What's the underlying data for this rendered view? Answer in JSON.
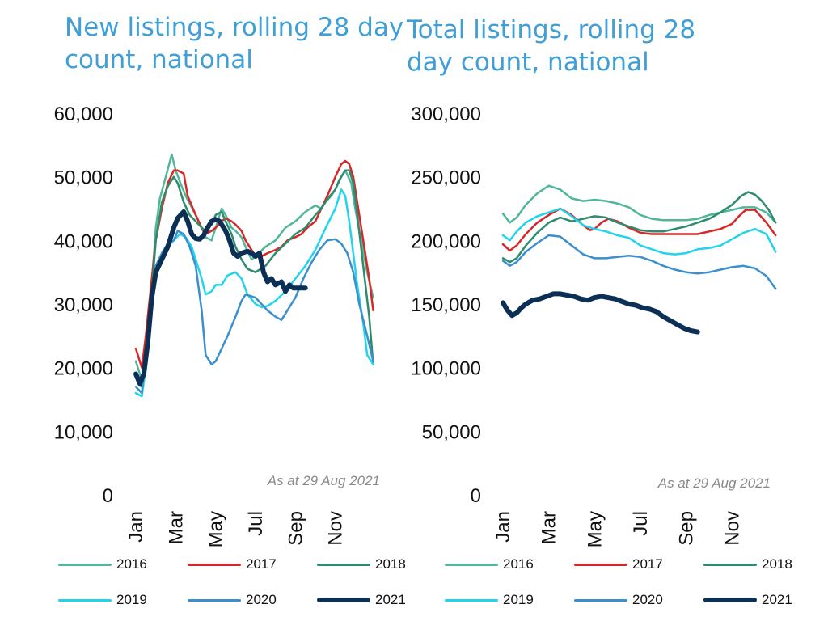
{
  "chart_data": [
    {
      "type": "line",
      "title": "New listings, rolling 28 day count, national",
      "annotation": "As at 29 Aug 2021",
      "ylim": [
        0,
        60000
      ],
      "yticks": [
        0,
        10000,
        20000,
        30000,
        40000,
        50000,
        60000
      ],
      "ytick_labels": [
        "0",
        "10,000",
        "20,000",
        "30,000",
        "40,000",
        "50,000",
        "60,000"
      ],
      "xlim": [
        0,
        12
      ],
      "xticks": [
        0,
        2,
        4,
        6,
        8,
        10
      ],
      "xtick_labels": [
        "Jan",
        "Mar",
        "May",
        "Jul",
        "Sep",
        "Nov"
      ],
      "grid": false,
      "legend_position": "bottom",
      "series": [
        {
          "name": "2016",
          "color": "#52b69a",
          "width": 2.5,
          "x": [
            0,
            0.3,
            0.5,
            0.8,
            1.0,
            1.2,
            1.5,
            1.8,
            2.0,
            2.3,
            2.5,
            3.0,
            3.3,
            3.5,
            3.8,
            4.0,
            4.3,
            4.5,
            4.8,
            5.0,
            5.3,
            5.5,
            5.8,
            6.0,
            6.5,
            7.0,
            7.5,
            8.0,
            8.5,
            9.0,
            9.3,
            9.5,
            9.8,
            10.0,
            10.3,
            10.5,
            10.8,
            11.0,
            11.3,
            11.6,
            11.9
          ],
          "y": [
            21000,
            18000,
            24000,
            33000,
            42000,
            46500,
            50000,
            53500,
            51000,
            48500,
            47000,
            44000,
            42000,
            40500,
            40000,
            42000,
            45000,
            44000,
            42000,
            41500,
            40500,
            39000,
            37000,
            37500,
            39000,
            40000,
            42000,
            43000,
            44500,
            45500,
            45000,
            46000,
            47000,
            48000,
            50000,
            51000,
            49000,
            45000,
            40000,
            35000,
            31000
          ]
        },
        {
          "name": "2017",
          "color": "#d62828",
          "width": 2.5,
          "x": [
            0,
            0.3,
            0.5,
            0.8,
            1.0,
            1.3,
            1.6,
            1.9,
            2.1,
            2.4,
            2.6,
            3.0,
            3.3,
            3.5,
            3.8,
            4.0,
            4.3,
            4.5,
            4.8,
            5.0,
            5.3,
            5.5,
            5.8,
            6.0,
            6.3,
            6.6,
            7.0,
            7.3,
            7.6,
            8.0,
            8.3,
            8.6,
            9.0,
            9.3,
            9.6,
            10.0,
            10.3,
            10.5,
            10.7,
            10.9,
            11.1,
            11.4,
            11.7,
            11.9
          ],
          "y": [
            23000,
            20000,
            25000,
            34000,
            40000,
            45000,
            49000,
            51000,
            51000,
            50500,
            47000,
            44000,
            42000,
            41000,
            41500,
            42000,
            43000,
            43500,
            43000,
            42500,
            41500,
            40000,
            38500,
            37500,
            37500,
            38000,
            38500,
            39000,
            40000,
            40500,
            41000,
            42000,
            43000,
            45000,
            47000,
            50000,
            52000,
            52500,
            52000,
            50000,
            46000,
            40000,
            34000,
            29000
          ]
        },
        {
          "name": "2018",
          "color": "#2e8b6e",
          "width": 2.5,
          "x": [
            0,
            0.3,
            0.5,
            0.8,
            1.0,
            1.3,
            1.6,
            1.9,
            2.1,
            2.4,
            2.7,
            3.0,
            3.3,
            3.5,
            3.8,
            4.0,
            4.3,
            4.5,
            4.8,
            5.0,
            5.3,
            5.6,
            6.0,
            6.5,
            7.0,
            7.5,
            8.0,
            8.5,
            9.0,
            9.3,
            9.6,
            10.0,
            10.2,
            10.5,
            10.7,
            10.9,
            11.1,
            11.4,
            11.7,
            11.9
          ],
          "y": [
            19000,
            17000,
            22000,
            32000,
            40000,
            46000,
            48500,
            50000,
            49000,
            46000,
            44000,
            43000,
            42000,
            41500,
            42500,
            44000,
            44500,
            43000,
            41000,
            39000,
            37000,
            35500,
            35000,
            36000,
            38000,
            39500,
            41000,
            42000,
            44000,
            45000,
            46500,
            48000,
            49500,
            51000,
            51000,
            49000,
            44000,
            36000,
            28000,
            20500
          ]
        },
        {
          "name": "2019",
          "color": "#22d3ee",
          "width": 2.5,
          "x": [
            0,
            0.3,
            0.5,
            0.8,
            1.0,
            1.3,
            1.6,
            1.9,
            2.2,
            2.5,
            2.8,
            3.0,
            3.3,
            3.5,
            3.8,
            4.0,
            4.3,
            4.6,
            5.0,
            5.3,
            5.6,
            6.0,
            6.3,
            6.6,
            7.0,
            7.5,
            8.0,
            8.5,
            9.0,
            9.3,
            9.6,
            10.0,
            10.3,
            10.5,
            10.7,
            10.9,
            11.1,
            11.4,
            11.6,
            11.9
          ],
          "y": [
            16000,
            15500,
            20000,
            29000,
            35000,
            37500,
            39000,
            40000,
            41000,
            40500,
            39000,
            37000,
            34000,
            31500,
            32000,
            33000,
            33000,
            34500,
            35000,
            34000,
            31500,
            30000,
            29500,
            29700,
            30500,
            32000,
            34000,
            36000,
            38500,
            40500,
            42500,
            45000,
            48000,
            47000,
            43000,
            38000,
            33000,
            27000,
            22000,
            20500
          ]
        },
        {
          "name": "2020",
          "color": "#3b8fcc",
          "width": 2.5,
          "x": [
            0,
            0.3,
            0.5,
            0.8,
            1.0,
            1.3,
            1.6,
            1.9,
            2.1,
            2.4,
            2.7,
            3.0,
            3.3,
            3.5,
            3.8,
            4.0,
            4.3,
            4.6,
            5.0,
            5.3,
            5.5,
            5.8,
            6.0,
            6.3,
            6.6,
            7.0,
            7.3,
            7.6,
            8.0,
            8.4,
            8.8,
            9.2,
            9.6,
            10.0,
            10.3,
            10.6,
            10.9,
            11.2,
            11.6,
            11.9
          ],
          "y": [
            17000,
            16000,
            22000,
            31000,
            36000,
            38000,
            39500,
            40000,
            41500,
            41000,
            39000,
            36000,
            29000,
            22000,
            20500,
            21000,
            23000,
            25000,
            28000,
            30500,
            31500,
            31200,
            31000,
            30000,
            29000,
            28000,
            27500,
            29000,
            31000,
            34000,
            36500,
            38500,
            40000,
            40200,
            39500,
            38000,
            35000,
            30000,
            25000,
            21000
          ]
        },
        {
          "name": "2021",
          "color": "#0b2f55",
          "width": 6,
          "x": [
            0,
            0.2,
            0.4,
            0.6,
            0.8,
            1.0,
            1.3,
            1.6,
            1.9,
            2.1,
            2.4,
            2.6,
            2.8,
            3.0,
            3.2,
            3.4,
            3.6,
            3.8,
            4.0,
            4.2,
            4.5,
            4.7,
            4.9,
            5.1,
            5.3,
            5.6,
            5.8,
            6.0,
            6.2,
            6.4,
            6.6,
            6.8,
            7.0,
            7.3,
            7.5,
            7.7,
            7.9,
            8.1,
            8.3,
            8.5
          ],
          "y": [
            19000,
            17500,
            19000,
            24000,
            31000,
            35000,
            37000,
            39000,
            42000,
            43500,
            44500,
            43000,
            41000,
            40300,
            40200,
            40800,
            42000,
            43000,
            43300,
            43000,
            41500,
            40000,
            38000,
            37500,
            38000,
            38300,
            38000,
            37500,
            38000,
            35000,
            33500,
            34000,
            33000,
            33500,
            32000,
            33000,
            32500,
            32500,
            32500,
            32500
          ]
        }
      ]
    },
    {
      "type": "line",
      "title": "Total listings, rolling 28 day count, national",
      "annotation": "As at 29 Aug 2021",
      "ylim": [
        0,
        300000
      ],
      "yticks": [
        0,
        50000,
        100000,
        150000,
        200000,
        250000,
        300000
      ],
      "ytick_labels": [
        "0",
        "50,000",
        "100,000",
        "150,000",
        "200,000",
        "250,000",
        "300,000"
      ],
      "xlim": [
        0,
        12
      ],
      "xticks": [
        0,
        2,
        4,
        6,
        8,
        10
      ],
      "xtick_labels": [
        "Jan",
        "Mar",
        "May",
        "Jul",
        "Sep",
        "Nov"
      ],
      "grid": false,
      "legend_position": "bottom",
      "series": [
        {
          "name": "2016",
          "color": "#52b69a",
          "width": 2.5,
          "x": [
            0,
            0.3,
            0.6,
            1.0,
            1.5,
            2.0,
            2.5,
            3.0,
            3.5,
            4.0,
            4.5,
            5.0,
            5.5,
            6.0,
            6.5,
            7.0,
            7.5,
            8.0,
            8.5,
            9.0,
            9.5,
            10.0,
            10.5,
            11.0,
            11.5,
            11.9
          ],
          "y": [
            221000,
            214000,
            218000,
            228000,
            237000,
            243000,
            240000,
            233000,
            231000,
            232000,
            231000,
            229000,
            226000,
            220000,
            217000,
            216000,
            216000,
            216000,
            217000,
            220000,
            222000,
            224000,
            226000,
            226000,
            222000,
            214000
          ]
        },
        {
          "name": "2017",
          "color": "#d62828",
          "width": 2.5,
          "x": [
            0,
            0.3,
            0.6,
            1.0,
            1.5,
            2.0,
            2.5,
            3.0,
            3.5,
            3.8,
            4.0,
            4.3,
            4.6,
            5.0,
            5.5,
            6.0,
            6.5,
            7.0,
            7.5,
            8.0,
            8.5,
            9.0,
            9.5,
            10.0,
            10.3,
            10.6,
            11.0,
            11.5,
            11.9
          ],
          "y": [
            197000,
            192000,
            196000,
            205000,
            214000,
            220000,
            225000,
            220000,
            212000,
            208000,
            209000,
            214000,
            217000,
            215000,
            210000,
            206000,
            205000,
            205000,
            205000,
            205000,
            205000,
            207000,
            209000,
            213000,
            219000,
            224000,
            224000,
            214000,
            204000
          ]
        },
        {
          "name": "2018",
          "color": "#2e8b6e",
          "width": 2.5,
          "x": [
            0,
            0.3,
            0.6,
            1.0,
            1.5,
            2.0,
            2.5,
            3.0,
            3.5,
            4.0,
            4.5,
            5.0,
            5.5,
            6.0,
            6.5,
            7.0,
            7.5,
            8.0,
            8.5,
            9.0,
            9.5,
            10.0,
            10.4,
            10.7,
            11.0,
            11.3,
            11.6,
            11.9
          ],
          "y": [
            186000,
            183000,
            186000,
            196000,
            206000,
            214000,
            218000,
            215000,
            217000,
            219000,
            218000,
            214000,
            211000,
            208000,
            207000,
            207000,
            209000,
            211000,
            214000,
            217000,
            222000,
            228000,
            235000,
            238000,
            236000,
            231000,
            224000,
            214000
          ]
        },
        {
          "name": "2019",
          "color": "#22d3ee",
          "width": 2.5,
          "x": [
            0,
            0.3,
            0.6,
            1.0,
            1.5,
            2.0,
            2.5,
            3.0,
            3.5,
            4.0,
            4.5,
            5.0,
            5.5,
            6.0,
            6.5,
            7.0,
            7.5,
            8.0,
            8.5,
            9.0,
            9.5,
            10.0,
            10.5,
            11.0,
            11.5,
            11.9
          ],
          "y": [
            204000,
            200000,
            207000,
            214000,
            219000,
            222000,
            225000,
            219000,
            212000,
            209000,
            207000,
            204000,
            202000,
            196000,
            193000,
            190000,
            189000,
            190000,
            193000,
            194000,
            196000,
            201000,
            206000,
            209000,
            205000,
            191000
          ]
        },
        {
          "name": "2020",
          "color": "#3b8fcc",
          "width": 2.5,
          "x": [
            0,
            0.3,
            0.6,
            1.0,
            1.5,
            2.0,
            2.5,
            3.0,
            3.5,
            4.0,
            4.5,
            5.0,
            5.5,
            6.0,
            6.5,
            7.0,
            7.5,
            8.0,
            8.5,
            9.0,
            9.5,
            10.0,
            10.5,
            11.0,
            11.5,
            11.9
          ],
          "y": [
            184000,
            180000,
            183000,
            191000,
            198000,
            204000,
            203000,
            196000,
            189000,
            186000,
            186000,
            187000,
            188000,
            187000,
            184000,
            180000,
            177000,
            175000,
            174000,
            175000,
            177000,
            179000,
            180000,
            178000,
            172000,
            162000
          ]
        },
        {
          "name": "2021",
          "color": "#0b2f55",
          "width": 6,
          "x": [
            0,
            0.2,
            0.4,
            0.6,
            0.8,
            1.0,
            1.3,
            1.6,
            1.9,
            2.2,
            2.5,
            2.8,
            3.1,
            3.4,
            3.7,
            4.0,
            4.3,
            4.6,
            4.9,
            5.2,
            5.5,
            5.8,
            6.1,
            6.4,
            6.7,
            7.0,
            7.3,
            7.6,
            7.9,
            8.2,
            8.5
          ],
          "y": [
            151000,
            145000,
            141000,
            143000,
            147000,
            150000,
            153000,
            154000,
            156000,
            158000,
            158000,
            157000,
            156000,
            154000,
            153000,
            155000,
            156000,
            155000,
            154000,
            152000,
            150000,
            149000,
            147000,
            146000,
            144000,
            140000,
            137000,
            134000,
            131000,
            129000,
            128000
          ]
        }
      ]
    }
  ]
}
